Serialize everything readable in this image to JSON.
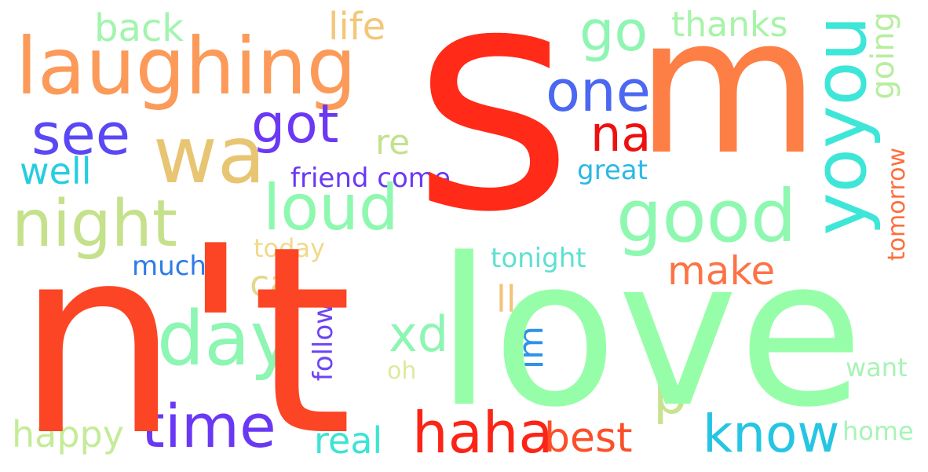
{
  "words": {
    "s": {
      "text": "s",
      "color": "#ff2a17"
    },
    "nt": {
      "text": "n't",
      "color": "#fc4524"
    },
    "love": {
      "text": "love",
      "color": "#96fea8"
    },
    "m": {
      "text": "m",
      "color": "#fd7f45"
    },
    "laughing": {
      "text": "laughing",
      "color": "#fc9a5a"
    },
    "wa": {
      "text": "wa",
      "color": "#e8c572"
    },
    "yoyou": {
      "text": "yoyou",
      "color": "#3ee6d8"
    },
    "good": {
      "text": "good",
      "color": "#8ef8b0"
    },
    "day": {
      "text": "day",
      "color": "#8cf6b2"
    },
    "night": {
      "text": "night",
      "color": "#c5e18b"
    },
    "loud": {
      "text": "loud",
      "color": "#8ef8af"
    },
    "got": {
      "text": "got",
      "color": "#6b38f4"
    },
    "one": {
      "text": "one",
      "color": "#4b68f2"
    },
    "see": {
      "text": "see",
      "color": "#5a48f4"
    },
    "go": {
      "text": "go",
      "color": "#8ef6b2"
    },
    "time": {
      "text": "time",
      "color": "#6a38f4"
    },
    "haha": {
      "text": "haha",
      "color": "#fb2416"
    },
    "know": {
      "text": "know",
      "color": "#26c5e3"
    },
    "na": {
      "text": "na",
      "color": "#ee1010"
    },
    "xd": {
      "text": "xd",
      "color": "#8ef6b2"
    },
    "p": {
      "text": "p",
      "color": "#c7e38e"
    },
    "best": {
      "text": "best",
      "color": "#fc4e28"
    },
    "make": {
      "text": "make",
      "color": "#fc7446"
    },
    "happy": {
      "text": "happy",
      "color": "#c4ec98"
    },
    "real": {
      "text": "real",
      "color": "#3de4d4"
    },
    "back": {
      "text": "back",
      "color": "#a2f4ae"
    },
    "life": {
      "text": "life",
      "color": "#f3c77a"
    },
    "thanks": {
      "text": "thanks",
      "color": "#a6f4a8"
    },
    "well": {
      "text": "well",
      "color": "#26cde0"
    },
    "re": {
      "text": "re",
      "color": "#c2e28e"
    },
    "ca": {
      "text": "ca",
      "color": "#e3d88b"
    },
    "ll": {
      "text": "ll",
      "color": "#f3c37c"
    },
    "going": {
      "text": "going",
      "color": "#b6ee9e"
    },
    "im": {
      "text": "im",
      "color": "#2f92ea"
    },
    "follow": {
      "text": "follow",
      "color": "#6d44f4"
    },
    "tomorrow": {
      "text": "tomorrow",
      "color": "#fd6e3e"
    },
    "friend_come": {
      "text": "friend come",
      "color": "#6b38f4"
    },
    "great": {
      "text": "great",
      "color": "#2ab9e4"
    },
    "today": {
      "text": "today",
      "color": "#f0d98e"
    },
    "tonight": {
      "text": "tonight",
      "color": "#5ee0d0"
    },
    "much": {
      "text": "much",
      "color": "#2f7ce8"
    },
    "oh": {
      "text": "oh",
      "color": "#ddea9e"
    },
    "want": {
      "text": "want",
      "color": "#a8f2b6"
    },
    "home": {
      "text": "home",
      "color": "#a8f4b6"
    }
  }
}
